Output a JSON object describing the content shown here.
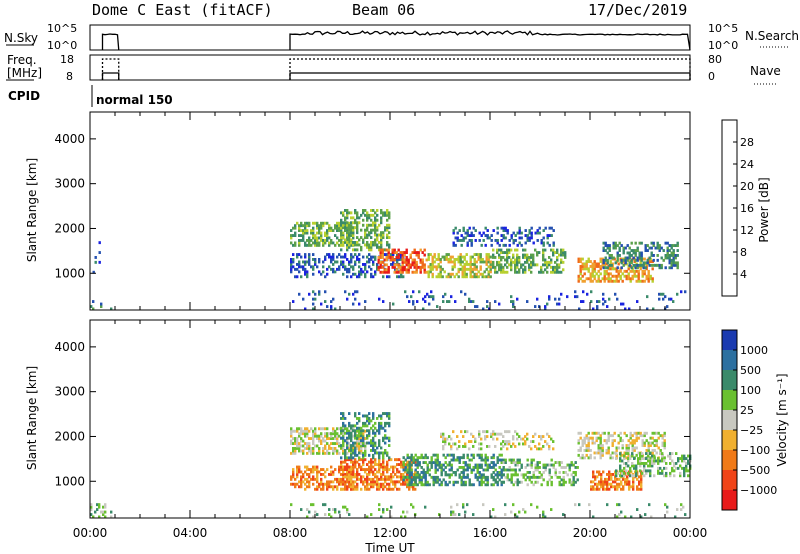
{
  "header": {
    "station": "Dome C East (fitACF)",
    "beam": "Beam 06",
    "date": "17/Dec/2019"
  },
  "top_panels": {
    "nsky_label": "N.Sky",
    "nsearch_label": "N.Search",
    "nsky_ticks": [
      "10^5",
      "10^0"
    ],
    "nsky_right_ticks": [
      "10^5",
      "10^0"
    ],
    "freq_label_line1": "Freq.",
    "freq_label_line2": "[MHz]",
    "freq_ticks": [
      "18",
      "8"
    ],
    "nave_ticks": [
      "80",
      "0"
    ],
    "nave_label": "Nave",
    "cpid_label": "CPID",
    "cpid_value": "normal 150",
    "on_intervals_hours": [
      [
        0.5,
        1.15
      ],
      [
        8.0,
        24.0
      ]
    ]
  },
  "colors": {
    "power_scale": [
      "#1a22e0",
      "#2450b0",
      "#3a8a6a",
      "#5aa04a",
      "#b8d030",
      "#f0a030",
      "#f06a1a",
      "#e81a1a"
    ],
    "velocity_scale": [
      "#e81a1a",
      "#f04418",
      "#f07a18",
      "#f0b030",
      "#c8c8c0",
      "#6ac030",
      "#3a8a6a",
      "#2c70a0",
      "#1a3ab0"
    ]
  },
  "chart_data": [
    {
      "type": "heatmap",
      "name": "power-panel",
      "ylabel": "Slant Range [km]",
      "y_ticks": [
        "4000",
        "3000",
        "2000",
        "1000"
      ],
      "ylim": [
        180,
        4600
      ],
      "xlim": [
        0,
        24
      ],
      "colorbar_label": "Power [dB]",
      "colorbar_ticks": [
        "28",
        "24",
        "20",
        "16",
        "12",
        "8",
        "4"
      ],
      "colorbar_range": [
        0,
        32
      ],
      "regions": [
        {
          "t0": 0.0,
          "t1": 0.8,
          "r0": 180,
          "r1": 350,
          "level": 2,
          "density": 0.25
        },
        {
          "t0": 0.1,
          "t1": 0.4,
          "r0": 1000,
          "r1": 1700,
          "level": 1,
          "density": 0.1
        },
        {
          "t0": 8.0,
          "t1": 10.5,
          "r0": 1600,
          "r1": 2100,
          "level": 3,
          "density": 0.55
        },
        {
          "t0": 8.0,
          "t1": 12.5,
          "r0": 900,
          "r1": 1400,
          "level": 1,
          "density": 0.35
        },
        {
          "t0": 10.0,
          "t1": 12.0,
          "r0": 1500,
          "r1": 2400,
          "level": 3,
          "density": 0.5
        },
        {
          "t0": 11.5,
          "t1": 13.5,
          "r0": 1000,
          "r1": 1500,
          "level": 6,
          "density": 0.6
        },
        {
          "t0": 13.5,
          "t1": 16.0,
          "r0": 900,
          "r1": 1400,
          "level": 4,
          "density": 0.55
        },
        {
          "t0": 14.5,
          "t1": 18.5,
          "r0": 1600,
          "r1": 2000,
          "level": 1,
          "density": 0.3
        },
        {
          "t0": 16.0,
          "t1": 19.0,
          "r0": 1000,
          "r1": 1500,
          "level": 3,
          "density": 0.45
        },
        {
          "t0": 19.5,
          "t1": 22.5,
          "r0": 800,
          "r1": 1300,
          "level": 5,
          "density": 0.55
        },
        {
          "t0": 20.5,
          "t1": 23.5,
          "r0": 1100,
          "r1": 1700,
          "level": 2,
          "density": 0.45
        },
        {
          "t0": 8.0,
          "t1": 24.0,
          "r0": 180,
          "r1": 600,
          "level": 1,
          "density": 0.08
        }
      ]
    },
    {
      "type": "heatmap",
      "name": "velocity-panel",
      "ylabel": "Slant Range [km]",
      "y_ticks": [
        "4000",
        "3000",
        "2000",
        "1000"
      ],
      "ylim": [
        180,
        4600
      ],
      "xlim": [
        0,
        24
      ],
      "x_ticks": [
        "00:00",
        "04:00",
        "08:00",
        "12:00",
        "16:00",
        "20:00",
        "00:00"
      ],
      "xlabel": "Time UT",
      "colorbar_label": "Velocity [m s⁻¹]",
      "colorbar_ticks": [
        "1000",
        "500",
        "100",
        "25",
        "−25",
        "−100",
        "−500",
        "−1000"
      ],
      "regions": [
        {
          "t0": 0.0,
          "t1": 0.8,
          "r0": 180,
          "r1": 500,
          "level": 5,
          "density": 0.25
        },
        {
          "t0": 8.0,
          "t1": 11.0,
          "r0": 1600,
          "r1": 2200,
          "level": 4,
          "density": 0.6
        },
        {
          "t0": 8.0,
          "t1": 10.5,
          "r0": 800,
          "r1": 1300,
          "level": 2,
          "density": 0.5
        },
        {
          "t0": 10.0,
          "t1": 13.0,
          "r0": 800,
          "r1": 1500,
          "level": 2,
          "density": 0.6
        },
        {
          "t0": 10.0,
          "t1": 12.0,
          "r0": 1500,
          "r1": 2500,
          "level": 6,
          "density": 0.45
        },
        {
          "t0": 12.5,
          "t1": 16.5,
          "r0": 900,
          "r1": 1600,
          "level": 6,
          "density": 0.5
        },
        {
          "t0": 14.0,
          "t1": 18.5,
          "r0": 1700,
          "r1": 2100,
          "level": 4,
          "density": 0.25
        },
        {
          "t0": 16.5,
          "t1": 19.5,
          "r0": 900,
          "r1": 1500,
          "level": 5,
          "density": 0.4
        },
        {
          "t0": 19.5,
          "t1": 23.0,
          "r0": 1500,
          "r1": 2100,
          "level": 4,
          "density": 0.45
        },
        {
          "t0": 20.0,
          "t1": 22.0,
          "r0": 800,
          "r1": 1200,
          "level": 2,
          "density": 0.6
        },
        {
          "t0": 21.0,
          "t1": 24.0,
          "r0": 1100,
          "r1": 1600,
          "level": 5,
          "density": 0.45
        },
        {
          "t0": 8.0,
          "t1": 24.0,
          "r0": 180,
          "r1": 500,
          "level": 5,
          "density": 0.08
        }
      ]
    }
  ]
}
